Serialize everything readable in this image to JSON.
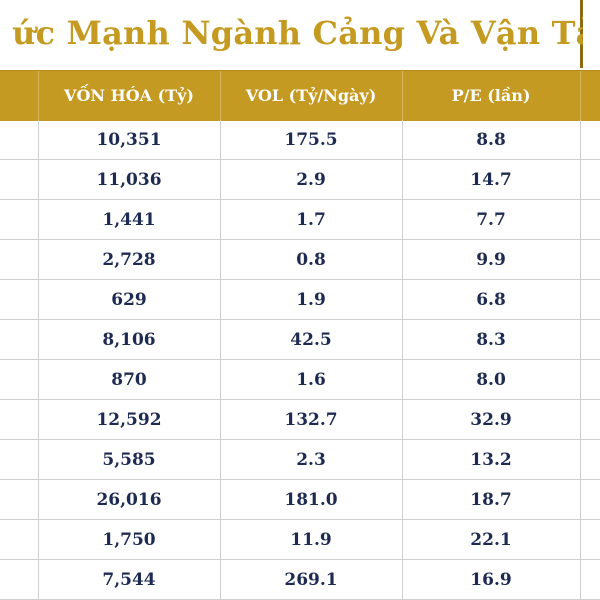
{
  "title": "ức Mạnh Ngành Cảng Và Vận Tải",
  "columns": [
    "VỐN HÓA (Tỷ)",
    "VOL (Tỷ/Ngày)",
    "P/E (lần)"
  ],
  "rows": [
    [
      "10,351",
      "175.5",
      "8.8"
    ],
    [
      "11,036",
      "2.9",
      "14.7"
    ],
    [
      "1,441",
      "1.7",
      "7.7"
    ],
    [
      "2,728",
      "0.8",
      "9.9"
    ],
    [
      "629",
      "1.9",
      "6.8"
    ],
    [
      "8,106",
      "42.5",
      "8.3"
    ],
    [
      "870",
      "1.6",
      "8.0"
    ],
    [
      "12,592",
      "132.7",
      "32.9"
    ],
    [
      "5,585",
      "2.3",
      "13.2"
    ],
    [
      "26,016",
      "181.0",
      "18.7"
    ],
    [
      "1,750",
      "11.9",
      "22.1"
    ],
    [
      "7,544",
      "269.1",
      "16.9"
    ]
  ],
  "colors": {
    "accent": "#c49a22",
    "text": "#1d2a52",
    "title": "#c49a20"
  }
}
